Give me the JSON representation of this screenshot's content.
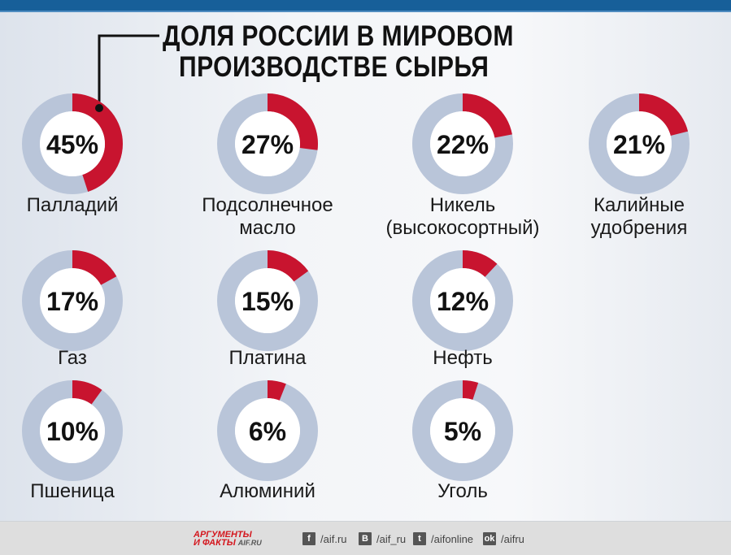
{
  "title": {
    "line1": "ДОЛЯ РОССИИ В МИРОВОМ",
    "line2": "ПРОИЗВОДСТВЕ СЫРЬЯ"
  },
  "colors": {
    "share": "#c8142f",
    "rest": "#b9c5d9",
    "bar": "#175f99"
  },
  "chart_data": {
    "type": "pie",
    "subtype": "donut",
    "title": "ДОЛЯ РОССИИ В МИРОВОМ ПРОИЗВОДСТВЕ СЫРЬЯ",
    "unit": "%",
    "items": [
      {
        "label": [
          "Палладий"
        ],
        "value": 45,
        "pct": "45%"
      },
      {
        "label": [
          "Подсолнечное",
          "масло"
        ],
        "value": 27,
        "pct": "27%"
      },
      {
        "label": [
          "Никель",
          "(высокосортный)"
        ],
        "value": 22,
        "pct": "22%"
      },
      {
        "label": [
          "Калийные",
          "удобрения"
        ],
        "value": 21,
        "pct": "21%"
      },
      {
        "label": [
          "Газ"
        ],
        "value": 17,
        "pct": "17%"
      },
      {
        "label": [
          "Платина"
        ],
        "value": 15,
        "pct": "15%"
      },
      {
        "label": [
          "Нефть"
        ],
        "value": 12,
        "pct": "12%"
      },
      {
        "label": [
          "Пшеница"
        ],
        "value": 10,
        "pct": "10%"
      },
      {
        "label": [
          "Алюминий"
        ],
        "value": 6,
        "pct": "6%"
      },
      {
        "label": [
          "Уголь"
        ],
        "value": 5,
        "pct": "5%"
      }
    ]
  },
  "footer": {
    "logo_line1": "АРГУМЕНТЫ",
    "logo_line2": "И ФАКТЫ",
    "logo_site": "AIF.RU",
    "social": [
      {
        "icon": "facebook-icon",
        "glyph": "f",
        "handle": "/aif.ru"
      },
      {
        "icon": "vk-icon",
        "glyph": "В",
        "handle": "/aif_ru"
      },
      {
        "icon": "twitter-icon",
        "glyph": "t",
        "handle": "/aifonline"
      },
      {
        "icon": "odnoklassniki-icon",
        "glyph": "ok",
        "handle": "/aifru"
      }
    ]
  }
}
